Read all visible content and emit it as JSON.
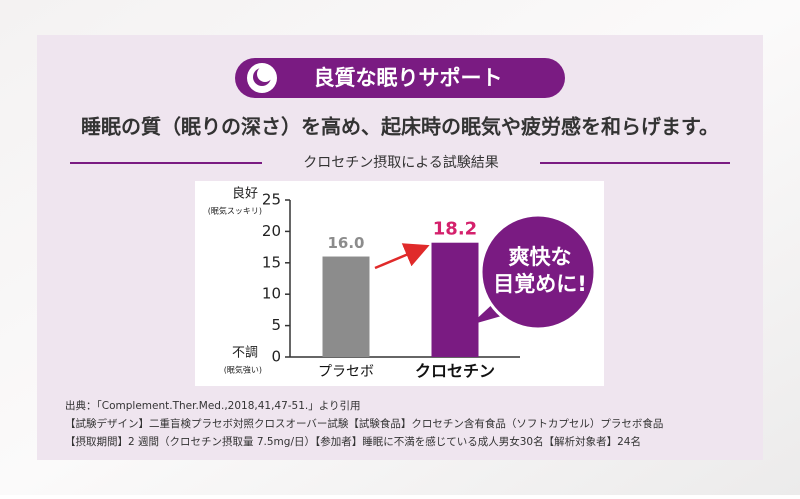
{
  "header": {
    "badge": "良質な眠りサポート",
    "headline": "睡眠の質（眠りの深さ）を高め、起床時の眠気や疲労感を和らげます。",
    "section_title": "クロセチン摂取による試験結果"
  },
  "chart_data": {
    "type": "bar",
    "categories": [
      "プラセボ",
      "クロセチン"
    ],
    "values": [
      16.0,
      18.2
    ],
    "value_labels": [
      "16.0",
      "18.2"
    ],
    "colors": [
      "#8c8c8c",
      "#7a1b82"
    ],
    "value_label_colors": [
      "#8c8c8c",
      "#d4216c"
    ],
    "ylim": [
      0,
      25
    ],
    "yticks": [
      0,
      5,
      10,
      15,
      20,
      25
    ],
    "y_top_label": "良好",
    "y_top_sublabel": "(眠気スッキリ)",
    "y_bottom_label": "不調",
    "y_bottom_sublabel": "(眠気強い)",
    "callout": [
      "爽快な",
      "目覚めに!"
    ]
  },
  "notes": [
    "出典：「Complement.Ther.Med.,2018,41,47-51.」より引用",
    "【試験デザイン】二重盲検プラセボ対照クロスオーバー試験【試験食品】クロセチン含有食品（ソフトカプセル）プラセボ食品",
    "【摂取期間】2 週間（クロセチン摂取量 7.5mg/日）【参加者】睡眠に不満を感じている成人男女30名【解析対象者】24名"
  ]
}
